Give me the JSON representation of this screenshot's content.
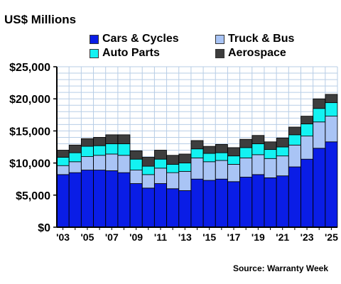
{
  "chart_data": {
    "type": "bar",
    "stacked": true,
    "title": "US$ Millions",
    "source": "Source: Warranty Week",
    "ylim": [
      0,
      25000
    ],
    "y_ticks": [
      "$0",
      "$5,000",
      "$10,000",
      "$15,000",
      "$20,000",
      "$25,000"
    ],
    "categories": [
      "'03",
      "'04",
      "'05",
      "'06",
      "'07",
      "'08",
      "'09",
      "'10",
      "'11",
      "'12",
      "'13",
      "'14",
      "'15",
      "'16",
      "'17",
      "'18",
      "'19",
      "'20",
      "'21",
      "'22",
      "'23",
      "'24",
      "'25"
    ],
    "x_tick_labels": [
      "'03",
      "",
      "'05",
      "",
      "'07",
      "",
      "'09",
      "",
      "'11",
      "",
      "'13",
      "",
      "'15",
      "",
      "'17",
      "",
      "'19",
      "",
      "'21",
      "",
      "'23",
      "",
      "'25"
    ],
    "legend_position": "top",
    "grid": true,
    "series": [
      {
        "name": "Cars & Cycles",
        "color": "#0a1de6",
        "values": [
          8200,
          8500,
          8900,
          8900,
          8800,
          8500,
          6800,
          6100,
          6800,
          6000,
          5700,
          7500,
          7300,
          7500,
          7100,
          7800,
          8200,
          7700,
          8000,
          9400,
          10600,
          12300,
          13300
        ]
      },
      {
        "name": "Truck & Bus",
        "color": "#a9c4f5",
        "values": [
          1400,
          1700,
          2100,
          2300,
          2600,
          2700,
          2100,
          2100,
          2400,
          2500,
          3000,
          3300,
          2900,
          2900,
          2700,
          3000,
          3100,
          3000,
          3100,
          3400,
          3600,
          4100,
          4000
        ]
      },
      {
        "name": "Auto Parts",
        "color": "#13f2f2",
        "values": [
          1300,
          1400,
          1600,
          1500,
          1600,
          1800,
          1700,
          1300,
          1400,
          1300,
          1300,
          1400,
          1300,
          1200,
          1300,
          1600,
          1700,
          1400,
          1400,
          1600,
          1900,
          2100,
          2100
        ]
      },
      {
        "name": "Aerospace",
        "color": "#3d3d3d",
        "values": [
          1100,
          1200,
          1200,
          1300,
          1400,
          1400,
          1300,
          1400,
          1400,
          1400,
          1400,
          1300,
          1100,
          1300,
          1300,
          1300,
          1300,
          1200,
          1400,
          1200,
          1200,
          1500,
          1300
        ]
      }
    ]
  }
}
